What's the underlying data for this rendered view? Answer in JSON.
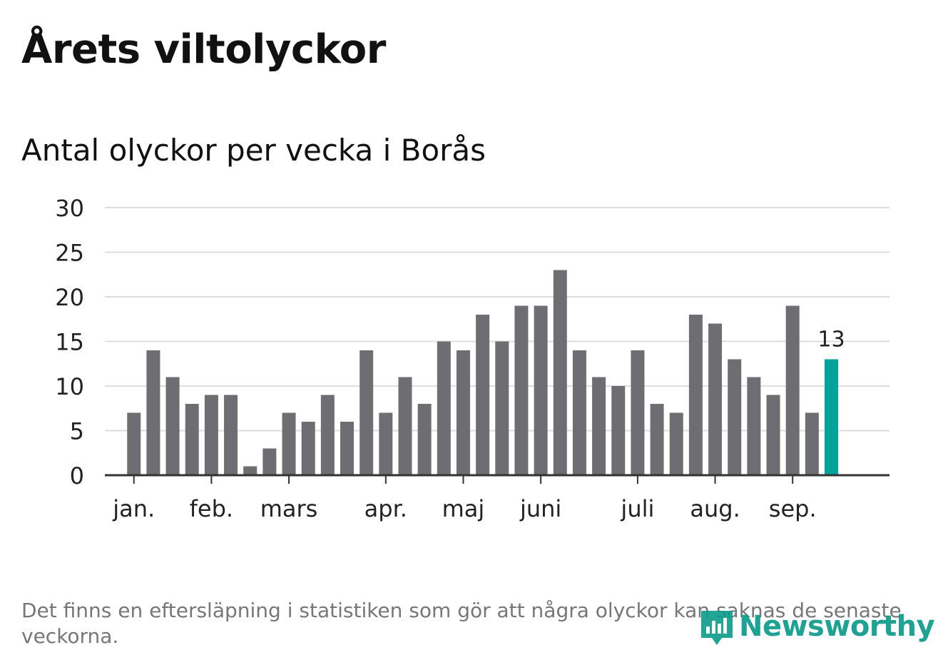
{
  "title": "Årets viltolyckor",
  "subtitle": "Antal olyckor per vecka i Borås",
  "footnote": "Det finns en eftersläpning i statistiken som gör att några olyckor kan saknas de senaste veckorna.",
  "brand": {
    "name": "Newsworthy",
    "icon": "newsworthy-logo-icon",
    "color": "#0a9b8a"
  },
  "colors": {
    "bar": "#6e6d72",
    "highlight": "#00a39a",
    "grid": "#dddddd",
    "axis": "#333333"
  },
  "chart_data": {
    "type": "bar",
    "title": "Antal olyckor per vecka i Borås",
    "xlabel": "",
    "ylabel": "",
    "ylim": [
      0,
      30
    ],
    "yticks": [
      0,
      5,
      10,
      15,
      20,
      25,
      30
    ],
    "grid": true,
    "x_start": 1,
    "x_range": [
      -0.5,
      40
    ],
    "values": [
      7,
      14,
      11,
      8,
      9,
      9,
      1,
      3,
      7,
      6,
      9,
      6,
      14,
      7,
      11,
      8,
      15,
      14,
      18,
      15,
      19,
      19,
      23,
      14,
      11,
      10,
      14,
      8,
      7,
      18,
      17,
      13,
      11,
      9,
      19,
      7,
      13
    ],
    "highlight_index": 36,
    "highlight_label": "13",
    "month_ticks": [
      {
        "label": "jan.",
        "x": 1.0
      },
      {
        "label": "feb.",
        "x": 5.0
      },
      {
        "label": "mars",
        "x": 9.0
      },
      {
        "label": "apr.",
        "x": 14.0
      },
      {
        "label": "maj",
        "x": 18.0
      },
      {
        "label": "juni",
        "x": 22.0
      },
      {
        "label": "juli",
        "x": 27.0
      },
      {
        "label": "aug.",
        "x": 31.0
      },
      {
        "label": "sep.",
        "x": 35.0
      }
    ]
  }
}
